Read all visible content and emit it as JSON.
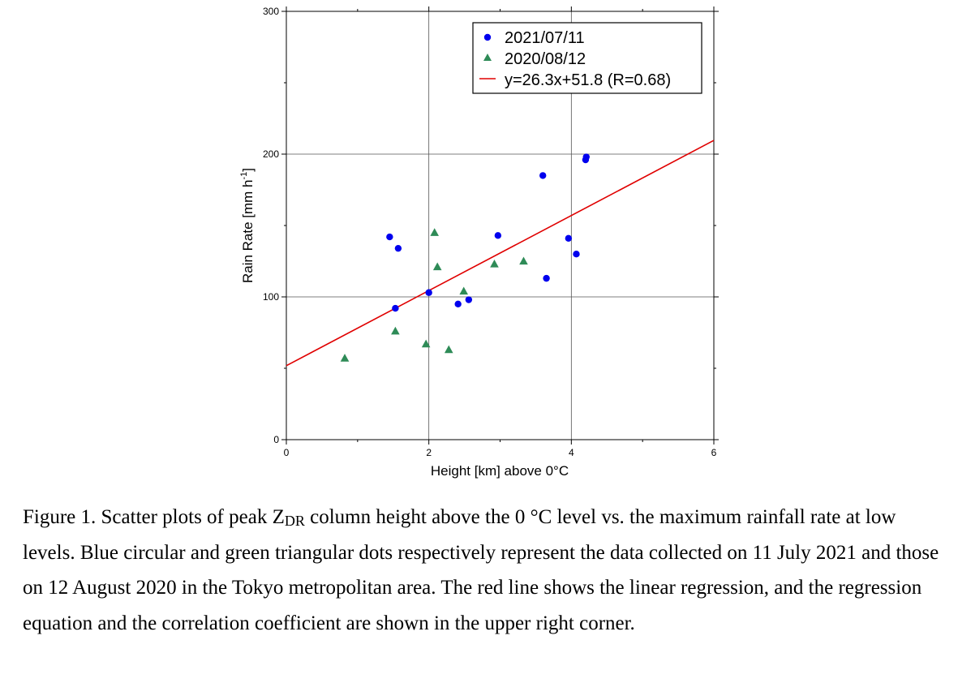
{
  "chart_data": {
    "type": "scatter",
    "xlabel": "Height [km] above 0°C",
    "ylabel_main": "Rain Rate [mm h",
    "ylabel_sup": "-1",
    "ylabel_end": "]",
    "xlim": [
      0,
      6
    ],
    "ylim": [
      0,
      300
    ],
    "xticks": [
      0,
      2,
      4,
      6
    ],
    "yticks": [
      0,
      100,
      200,
      300
    ],
    "grid": true,
    "legend_position": "top-right",
    "series": [
      {
        "name": "2021/07/11",
        "marker": "circle",
        "color": "#0000ee",
        "points": [
          {
            "x": 1.45,
            "y": 142
          },
          {
            "x": 1.57,
            "y": 134
          },
          {
            "x": 1.53,
            "y": 92
          },
          {
            "x": 2.0,
            "y": 103
          },
          {
            "x": 2.41,
            "y": 95
          },
          {
            "x": 2.56,
            "y": 98
          },
          {
            "x": 2.97,
            "y": 143
          },
          {
            "x": 3.6,
            "y": 185
          },
          {
            "x": 3.65,
            "y": 113
          },
          {
            "x": 3.96,
            "y": 141
          },
          {
            "x": 4.07,
            "y": 130
          },
          {
            "x": 4.2,
            "y": 196
          },
          {
            "x": 4.21,
            "y": 198
          }
        ]
      },
      {
        "name": "2020/08/12",
        "marker": "triangle",
        "color": "#2e8b57",
        "points": [
          {
            "x": 0.82,
            "y": 57
          },
          {
            "x": 1.53,
            "y": 76
          },
          {
            "x": 1.96,
            "y": 67
          },
          {
            "x": 2.08,
            "y": 145
          },
          {
            "x": 2.12,
            "y": 121
          },
          {
            "x": 2.28,
            "y": 63
          },
          {
            "x": 2.49,
            "y": 104
          },
          {
            "x": 2.92,
            "y": 123
          },
          {
            "x": 3.33,
            "y": 125
          }
        ]
      }
    ],
    "regression": {
      "name": "y=26.3x+51.8 (R=0.68)",
      "slope": 26.3,
      "intercept": 51.8,
      "color": "#e00000"
    }
  },
  "caption": {
    "text_before": "Figure 1. Scatter plots of peak Z",
    "subscript": "DR",
    "text_after": " column height above the 0 °C level vs. the maximum rainfall rate at low levels. Blue circular and green triangular dots respectively represent the data collected on 11 July 2021 and those on 12 August 2020 in the Tokyo metropolitan area. The red line shows the linear regression, and the regression equation and the correlation coefficient are shown in the upper right corner."
  }
}
